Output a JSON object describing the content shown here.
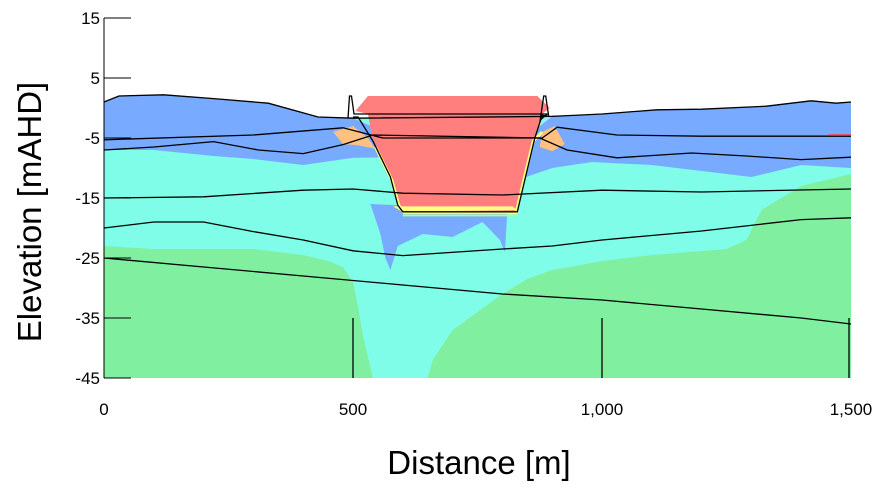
{
  "chart_data": {
    "type": "heatmap",
    "title": "",
    "xlabel": "Distance [m]",
    "ylabel": "Elevation [mAHD]",
    "xlim": [
      0,
      1500
    ],
    "ylim": [
      -45,
      15
    ],
    "x_ticks": [
      0,
      500,
      1000,
      1500
    ],
    "x_tick_labels": [
      "0",
      "500",
      "1,000",
      "1,500"
    ],
    "y_ticks": [
      15,
      5,
      -5,
      -15,
      -25,
      -35,
      -45
    ],
    "y_tick_labels": [
      "15",
      "5",
      "-5",
      "-15",
      "-25",
      "-35",
      "-45"
    ],
    "grid": false,
    "colors": {
      "high": "#ff7f7f",
      "yellow": "#ffff80",
      "orange": "#ffc080",
      "light_green": "#b0ff90",
      "light_blue": "#a0e8ff",
      "medium_blue": "#78aaff",
      "cyan": "#7ffde8",
      "green": "#80f0a0",
      "boundary": "#000000",
      "reference_line": "#ff4040"
    },
    "zones": [
      {
        "name": "medium-blue",
        "color_key": "medium_blue",
        "polygon": [
          [
            0,
            1
          ],
          [
            30,
            2
          ],
          [
            120,
            2.2
          ],
          [
            230,
            1.5
          ],
          [
            330,
            0.8
          ],
          [
            430,
            -1.5
          ],
          [
            500,
            -1.7
          ],
          [
            550,
            -3.5
          ],
          [
            575,
            -7
          ],
          [
            600,
            -10
          ],
          [
            620,
            -8.2
          ],
          [
            500,
            -8.3
          ],
          [
            400,
            -9.5
          ],
          [
            300,
            -8.5
          ],
          [
            220,
            -8
          ],
          [
            100,
            -7
          ],
          [
            0,
            -7
          ]
        ]
      },
      {
        "name": "medium-blue-right",
        "color_key": "medium_blue",
        "polygon": [
          [
            1500,
            1
          ],
          [
            1470,
            0.8
          ],
          [
            1420,
            1.2
          ],
          [
            1330,
            0.3
          ],
          [
            1200,
            -0.2
          ],
          [
            1110,
            -0.3
          ],
          [
            1000,
            -1
          ],
          [
            900,
            -1.4
          ],
          [
            860,
            -4
          ],
          [
            830,
            -12
          ],
          [
            900,
            -10
          ],
          [
            980,
            -9
          ],
          [
            1100,
            -9.5
          ],
          [
            1200,
            -10.5
          ],
          [
            1300,
            -11.5
          ],
          [
            1400,
            -9.5
          ],
          [
            1500,
            -10
          ]
        ]
      },
      {
        "name": "plume-blue",
        "color_key": "medium_blue",
        "polygon": [
          [
            535,
            -16
          ],
          [
            555,
            -21
          ],
          [
            565,
            -25
          ],
          [
            575,
            -27
          ],
          [
            590,
            -23
          ],
          [
            640,
            -21
          ],
          [
            700,
            -21.5
          ],
          [
            760,
            -19
          ],
          [
            795,
            -22
          ],
          [
            805,
            -24
          ],
          [
            810,
            -17
          ],
          [
            800,
            -16
          ],
          [
            680,
            -16.5
          ]
        ]
      },
      {
        "name": "high-pit",
        "color_key": "high",
        "polygon": [
          [
            505,
            -0.5
          ],
          [
            530,
            -1
          ],
          [
            540,
            -5.5
          ],
          [
            575,
            -11.5
          ],
          [
            590,
            -16
          ],
          [
            600,
            -17.2
          ],
          [
            830,
            -17.2
          ],
          [
            845,
            -12
          ],
          [
            865,
            -5
          ],
          [
            880,
            -1
          ],
          [
            895,
            0
          ],
          [
            870,
            2
          ],
          [
            530,
            2
          ]
        ]
      },
      {
        "name": "orange-left",
        "color_key": "orange",
        "polygon": [
          [
            460,
            -4
          ],
          [
            500,
            -3
          ],
          [
            530,
            -5
          ],
          [
            545,
            -6.8
          ],
          [
            510,
            -6.2
          ],
          [
            480,
            -6
          ]
        ]
      },
      {
        "name": "orange-right",
        "color_key": "orange",
        "polygon": [
          [
            880,
            -4
          ],
          [
            905,
            -3
          ],
          [
            925,
            -6
          ],
          [
            900,
            -7.2
          ],
          [
            875,
            -6.5
          ]
        ]
      },
      {
        "name": "yellow-bottom",
        "color_key": "yellow",
        "polygon": [
          [
            580,
            -16.4
          ],
          [
            820,
            -16.4
          ],
          [
            830,
            -17
          ],
          [
            600,
            -17.3
          ]
        ]
      }
    ],
    "contour_lines": [
      {
        "name": "ground-surface",
        "points": [
          [
            0,
            1
          ],
          [
            30,
            2
          ],
          [
            120,
            2.2
          ],
          [
            230,
            1.5
          ],
          [
            330,
            0.8
          ],
          [
            430,
            -1.5
          ],
          [
            500,
            -1.7
          ],
          [
            900,
            -1.4
          ],
          [
            1000,
            -1
          ],
          [
            1110,
            -0.3
          ],
          [
            1200,
            -0.2
          ],
          [
            1330,
            0.3
          ],
          [
            1420,
            1.2
          ],
          [
            1470,
            0.8
          ],
          [
            1500,
            1
          ]
        ]
      },
      {
        "name": "layer-1",
        "points": [
          [
            0,
            -5.3
          ],
          [
            300,
            -4.5
          ],
          [
            480,
            -3.3
          ],
          [
            560,
            -5
          ],
          [
            880,
            -5
          ],
          [
            910,
            -3.2
          ],
          [
            1030,
            -4.5
          ],
          [
            1200,
            -4.7
          ],
          [
            1500,
            -4.7
          ]
        ]
      },
      {
        "name": "layer-2",
        "points": [
          [
            0,
            -7
          ],
          [
            100,
            -6.5
          ],
          [
            220,
            -5.6
          ],
          [
            310,
            -7
          ],
          [
            400,
            -7.6
          ],
          [
            480,
            -6.1
          ],
          [
            540,
            -4.5
          ],
          [
            875,
            -5
          ],
          [
            930,
            -7
          ],
          [
            1030,
            -8.3
          ],
          [
            1180,
            -7.5
          ],
          [
            1290,
            -8
          ],
          [
            1400,
            -8.6
          ],
          [
            1500,
            -8.2
          ]
        ]
      },
      {
        "name": "layer-3",
        "points": [
          [
            0,
            -15
          ],
          [
            200,
            -14.8
          ],
          [
            400,
            -13.7
          ],
          [
            500,
            -13.5
          ],
          [
            600,
            -14.2
          ],
          [
            800,
            -14.5
          ],
          [
            1000,
            -13.7
          ],
          [
            1200,
            -14
          ],
          [
            1500,
            -13.5
          ]
        ]
      },
      {
        "name": "layer-4",
        "points": [
          [
            0,
            -20
          ],
          [
            100,
            -19
          ],
          [
            200,
            -19
          ],
          [
            300,
            -20.6
          ],
          [
            400,
            -22
          ],
          [
            500,
            -23.8
          ],
          [
            600,
            -24.6
          ],
          [
            800,
            -23.5
          ],
          [
            900,
            -23
          ],
          [
            1000,
            -22
          ],
          [
            1200,
            -20.5
          ],
          [
            1400,
            -18.6
          ],
          [
            1500,
            -18.3
          ]
        ]
      },
      {
        "name": "layer-5",
        "points": [
          [
            0,
            -25
          ],
          [
            200,
            -26.5
          ],
          [
            400,
            -28
          ],
          [
            600,
            -29.5
          ],
          [
            800,
            -31
          ],
          [
            1000,
            -32
          ],
          [
            1200,
            -33.5
          ],
          [
            1400,
            -35
          ],
          [
            1500,
            -36
          ]
        ]
      }
    ],
    "wall": {
      "points": [
        [
          490,
          -1.7
        ],
        [
          493,
          2
        ],
        [
          497,
          2
        ],
        [
          502,
          -1
        ],
        [
          890,
          -1
        ],
        [
          876,
          -2
        ],
        [
          883,
          2
        ],
        [
          887,
          2
        ],
        [
          893,
          -1.4
        ]
      ]
    },
    "reference_line": {
      "points": [
        [
          1455,
          -4.5
        ],
        [
          1500,
          -4.5
        ]
      ]
    },
    "boundary_segments": [
      {
        "points": [
          [
            500,
            -35
          ],
          [
            500,
            -45
          ]
        ]
      },
      {
        "points": [
          [
            1000,
            -35
          ],
          [
            1000,
            -45
          ]
        ]
      },
      {
        "points": [
          [
            1496,
            -35
          ],
          [
            1496,
            -45
          ]
        ]
      }
    ]
  }
}
